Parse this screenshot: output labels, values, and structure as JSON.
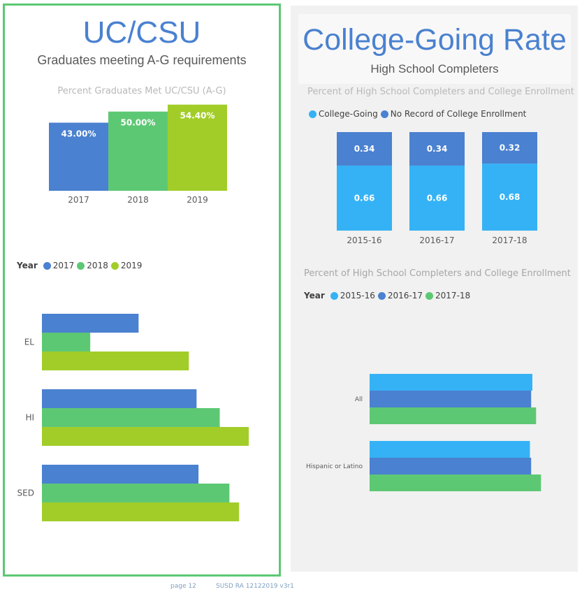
{
  "colors": {
    "blue": "#4a81d0",
    "green": "#5dc874",
    "lime": "#a2cd29",
    "cyan": "#35b2f5",
    "title_blue": "#4a81d0",
    "border_green": "#5dc874"
  },
  "left": {
    "title": "UC/CSU",
    "subtitle": "Graduates meeting A-G requirements"
  },
  "right": {
    "title": "College-Going Rate",
    "subtitle": "High School Completers"
  },
  "legends": {
    "year_label": "Year",
    "left_years": [
      {
        "label": "2017",
        "color": "#4a81d0"
      },
      {
        "label": "2018",
        "color": "#5dc874"
      },
      {
        "label": "2019",
        "color": "#a2cd29"
      }
    ],
    "stack": [
      {
        "label": "College-Going",
        "color": "#35b2f5"
      },
      {
        "label": "No Record of College Enrollment",
        "color": "#4a81d0"
      }
    ],
    "right_years": [
      {
        "label": "2015-16",
        "color": "#35b2f5"
      },
      {
        "label": "2016-17",
        "color": "#4a81d0"
      },
      {
        "label": "2017-18",
        "color": "#5dc874"
      }
    ]
  },
  "footer": {
    "page": "page 12",
    "doc": "SUSD RA 12122019 v3r1"
  },
  "chart_data": [
    {
      "id": "ag-by-year",
      "type": "bar",
      "title": "Percent Graduates Met UC/CSU (A-G)",
      "categories": [
        "2017",
        "2018",
        "2019"
      ],
      "values": [
        43.0,
        50.0,
        54.4
      ],
      "data_labels": [
        "43.00%",
        "50.00%",
        "54.40%"
      ],
      "colors": [
        "#4a81d0",
        "#5dc874",
        "#a2cd29"
      ],
      "ylim": [
        0,
        60
      ]
    },
    {
      "id": "ag-by-group",
      "type": "bar",
      "orientation": "horizontal",
      "categories": [
        "EL",
        "HI",
        "SED"
      ],
      "series": [
        {
          "name": "2017",
          "color": "#4a81d0",
          "values": [
            25,
            40,
            40.5
          ]
        },
        {
          "name": "2018",
          "color": "#5dc874",
          "values": [
            12.5,
            46,
            48.5
          ]
        },
        {
          "name": "2019",
          "color": "#a2cd29",
          "values": [
            38,
            53.5,
            51
          ]
        }
      ],
      "xlim": [
        0,
        60
      ]
    },
    {
      "id": "college-going-stacked",
      "type": "bar",
      "stacked": true,
      "title": "Percent of High School Completers and College Enrollment",
      "categories": [
        "2015-16",
        "2016-17",
        "2017-18"
      ],
      "series": [
        {
          "name": "College-Going",
          "color": "#35b2f5",
          "values": [
            0.66,
            0.66,
            0.68
          ],
          "labels": [
            "0.66",
            "0.66",
            "0.68"
          ]
        },
        {
          "name": "No Record of College Enrollment",
          "color": "#4a81d0",
          "values": [
            0.34,
            0.34,
            0.32
          ],
          "labels": [
            "0.34",
            "0.34",
            "0.32"
          ]
        }
      ],
      "ylim": [
        0,
        1
      ]
    },
    {
      "id": "college-going-by-group",
      "type": "bar",
      "orientation": "horizontal",
      "title": "Percent of High School Completers and College Enrollment",
      "categories": [
        "All",
        "Hispanic or Latino"
      ],
      "series": [
        {
          "name": "2015-16",
          "color": "#35b2f5",
          "values": [
            0.66,
            0.65
          ]
        },
        {
          "name": "2016-17",
          "color": "#4a81d0",
          "values": [
            0.655,
            0.655
          ]
        },
        {
          "name": "2017-18",
          "color": "#5dc874",
          "values": [
            0.675,
            0.695
          ]
        }
      ],
      "xlim": [
        0,
        1
      ]
    }
  ]
}
